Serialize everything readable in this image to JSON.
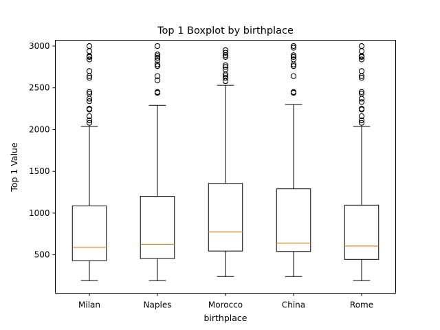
{
  "chart_data": {
    "type": "boxplot",
    "title": "Top 1 Boxplot by birthplace",
    "xlabel": "birthplace",
    "ylabel": "Top 1 Value",
    "ylim": [
      40,
      3070
    ],
    "yticks": [
      500,
      1000,
      1500,
      2000,
      2500,
      3000
    ],
    "grid": false,
    "categories": [
      "Milan",
      "Naples",
      "Morocco",
      "China",
      "Rome"
    ],
    "boxes": [
      {
        "name": "Milan",
        "whisker_low": 190,
        "q1": 430,
        "median": 590,
        "q3": 1085,
        "whisker_high": 2040,
        "fliers": [
          2080,
          2110,
          2160,
          2240,
          2250,
          2340,
          2370,
          2430,
          2450,
          2620,
          2640,
          2700,
          2840,
          2870,
          2880,
          2940,
          3000
        ]
      },
      {
        "name": "Naples",
        "whisker_low": 190,
        "q1": 455,
        "median": 625,
        "q3": 1200,
        "whisker_high": 2290,
        "fliers": [
          2440,
          2450,
          2590,
          2640,
          2760,
          2780,
          2830,
          2860,
          2880,
          2900,
          3000
        ]
      },
      {
        "name": "Morocco",
        "whisker_low": 240,
        "q1": 545,
        "median": 775,
        "q3": 1355,
        "whisker_high": 2530,
        "fliers": [
          2580,
          2620,
          2640,
          2660,
          2720,
          2750,
          2770,
          2870,
          2890,
          2920,
          2950
        ]
      },
      {
        "name": "China",
        "whisker_low": 240,
        "q1": 540,
        "median": 640,
        "q3": 1290,
        "whisker_high": 2300,
        "fliers": [
          2440,
          2450,
          2640,
          2760,
          2780,
          2840,
          2870,
          2890,
          2980,
          3000
        ]
      },
      {
        "name": "Rome",
        "whisker_low": 190,
        "q1": 445,
        "median": 605,
        "q3": 1095,
        "whisker_high": 2040,
        "fliers": [
          2080,
          2110,
          2160,
          2240,
          2250,
          2330,
          2370,
          2430,
          2450,
          2620,
          2640,
          2700,
          2840,
          2870,
          2880,
          2940,
          3000
        ]
      }
    ]
  }
}
